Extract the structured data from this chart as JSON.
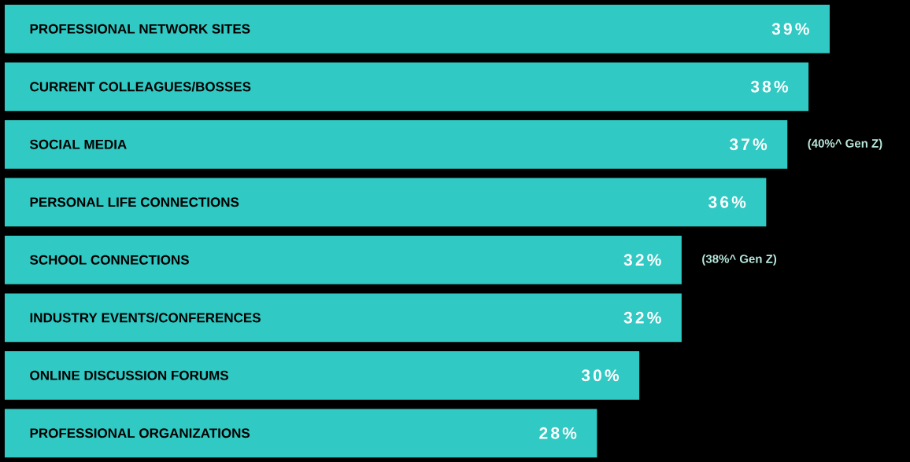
{
  "chart_data": {
    "type": "bar",
    "orientation": "horizontal",
    "color": "#30c9c3",
    "value_labels": [
      "39%",
      "38%",
      "37%",
      "36%",
      "32%",
      "32%",
      "30%",
      "28%"
    ],
    "categories": [
      "PROFESSIONAL NETWORK SITES",
      "CURRENT COLLEAGUES/BOSSES",
      "SOCIAL MEDIA",
      "PERSONAL LIFE CONNECTIONS",
      "SCHOOL CONNECTIONS",
      "INDUSTRY EVENTS/CONFERENCES",
      "ONLINE DISCUSSION FORUMS",
      "PROFESSIONAL ORGANIZATIONS"
    ],
    "values": [
      39,
      38,
      37,
      36,
      32,
      32,
      30,
      28
    ],
    "annotations": [
      {
        "text": "(40%^ Gen Z)",
        "x": 37,
        "y": "SOCIAL MEDIA"
      },
      {
        "text": "(38%^ Gen Z)",
        "x": 32,
        "y": "SCHOOL CONNECTIONS"
      }
    ]
  }
}
